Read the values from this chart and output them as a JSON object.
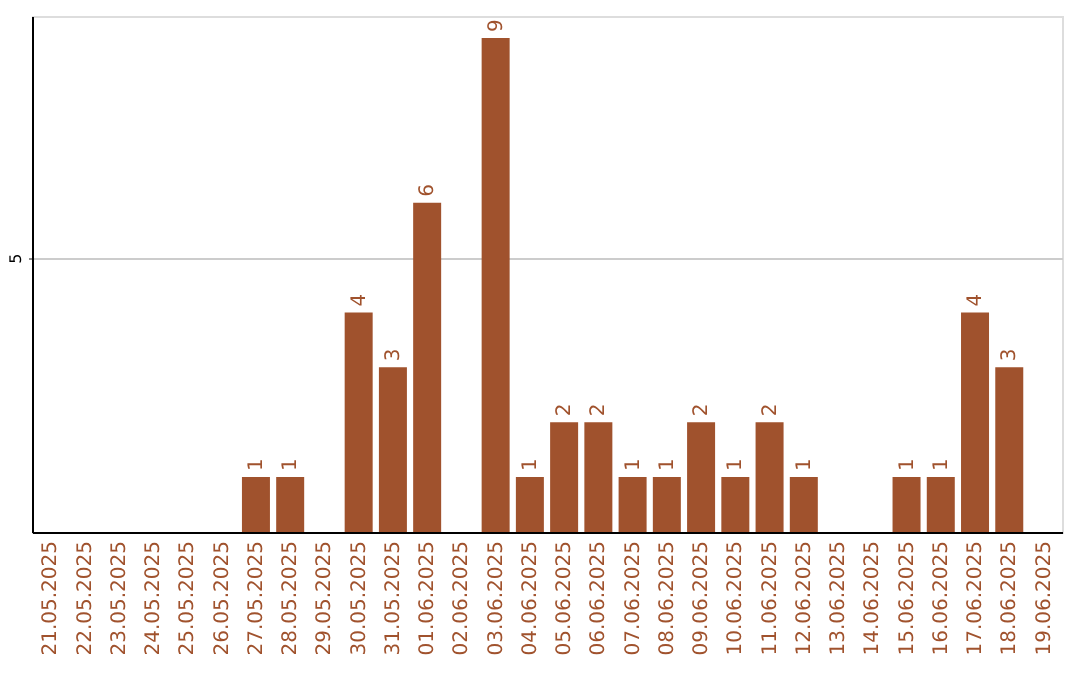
{
  "chart_data": {
    "type": "bar",
    "categories": [
      "21.05.2025",
      "22.05.2025",
      "23.05.2025",
      "24.05.2025",
      "25.05.2025",
      "26.05.2025",
      "27.05.2025",
      "28.05.2025",
      "29.05.2025",
      "30.05.2025",
      "31.05.2025",
      "01.06.2025",
      "02.06.2025",
      "03.06.2025",
      "04.06.2025",
      "05.06.2025",
      "06.06.2025",
      "07.06.2025",
      "08.06.2025",
      "09.06.2025",
      "10.06.2025",
      "11.06.2025",
      "12.06.2025",
      "13.06.2025",
      "14.06.2025",
      "15.06.2025",
      "16.06.2025",
      "17.06.2025",
      "18.06.2025",
      "19.06.2025"
    ],
    "values": [
      0,
      0,
      0,
      0,
      0,
      0,
      1,
      1,
      0,
      4,
      3,
      6,
      0,
      9,
      1,
      2,
      2,
      1,
      1,
      2,
      1,
      2,
      1,
      0,
      0,
      1,
      1,
      4,
      3,
      0
    ],
    "value_labels": [
      null,
      null,
      null,
      null,
      null,
      null,
      "1",
      "1",
      null,
      "4",
      "3",
      "6",
      null,
      "9",
      "1",
      "2",
      "2",
      "1",
      "1",
      "2",
      "1",
      "2",
      "1",
      null,
      null,
      "1",
      "1",
      "4",
      "3",
      null
    ],
    "color": "#a0522d",
    "ylim": [
      0,
      9.4
    ],
    "yticks": [
      5
    ],
    "grid": "y"
  }
}
